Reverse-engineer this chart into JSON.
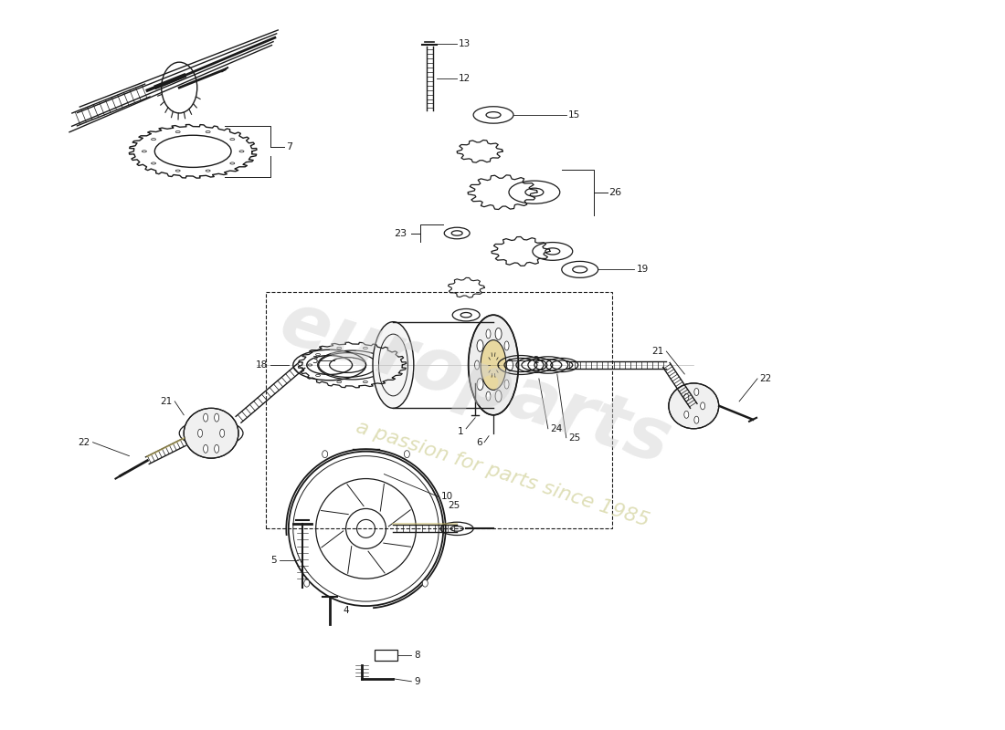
{
  "background_color": "#ffffff",
  "line_color": "#1a1a1a",
  "watermark1": "europarts",
  "watermark2": "a passion for parts since 1985",
  "fig_width": 11.0,
  "fig_height": 8.0,
  "dpi": 100
}
